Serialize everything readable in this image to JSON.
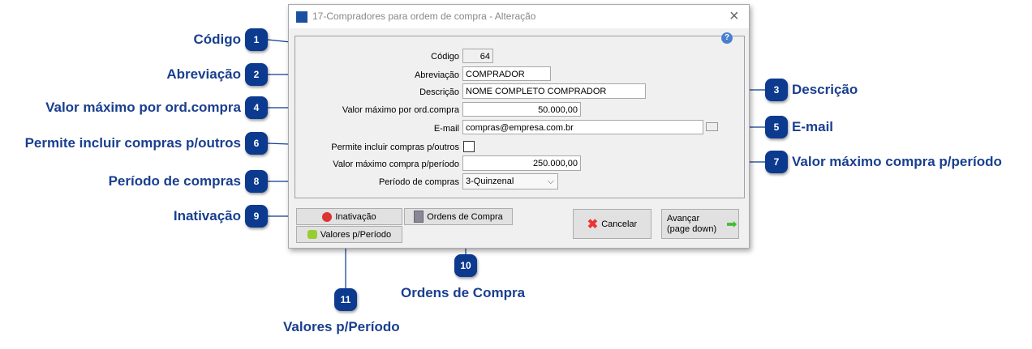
{
  "window": {
    "title": "17-Compradores para ordem de compra - Alteração",
    "close": "×",
    "help": "?"
  },
  "form": {
    "codigo": {
      "label": "Código",
      "value": "64"
    },
    "abreviacao": {
      "label": "Abreviação",
      "value": "COMPRADOR"
    },
    "descricao": {
      "label": "Descrição",
      "value": "NOME COMPLETO COMPRADOR"
    },
    "valor_max_ord": {
      "label": "Valor máximo por ord.compra",
      "value": "50.000,00"
    },
    "email": {
      "label": "E-mail",
      "value": "compras@empresa.com.br"
    },
    "permite": {
      "label": "Permite incluir compras p/outros",
      "checked": false
    },
    "valor_max_periodo": {
      "label": "Valor máximo compra p/período",
      "value": "250.000,00"
    },
    "periodo": {
      "label": "Período de compras",
      "value": "3-Quinzenal"
    }
  },
  "buttons": {
    "inativacao": "Inativação",
    "ordens": "Ordens de Compra",
    "valores": "Valores p/Período",
    "cancelar": "Cancelar",
    "avancar1": "Avançar",
    "avancar2": "(page down)"
  },
  "callouts": [
    {
      "n": "1",
      "label": "Código"
    },
    {
      "n": "2",
      "label": "Abreviação"
    },
    {
      "n": "3",
      "label": "Descrição"
    },
    {
      "n": "4",
      "label": "Valor máximo por ord.compra"
    },
    {
      "n": "5",
      "label": "E-mail"
    },
    {
      "n": "6",
      "label": "Permite incluir compras p/outros"
    },
    {
      "n": "7",
      "label": "Valor máximo compra p/período"
    },
    {
      "n": "8",
      "label": "Período de compras"
    },
    {
      "n": "9",
      "label": "Inativação"
    },
    {
      "n": "10",
      "label": "Ordens de Compra"
    },
    {
      "n": "11",
      "label": "Valores p/Período"
    }
  ],
  "colors": {
    "callout": "#0b3a8f",
    "callout_text": "#1a3f8f"
  }
}
